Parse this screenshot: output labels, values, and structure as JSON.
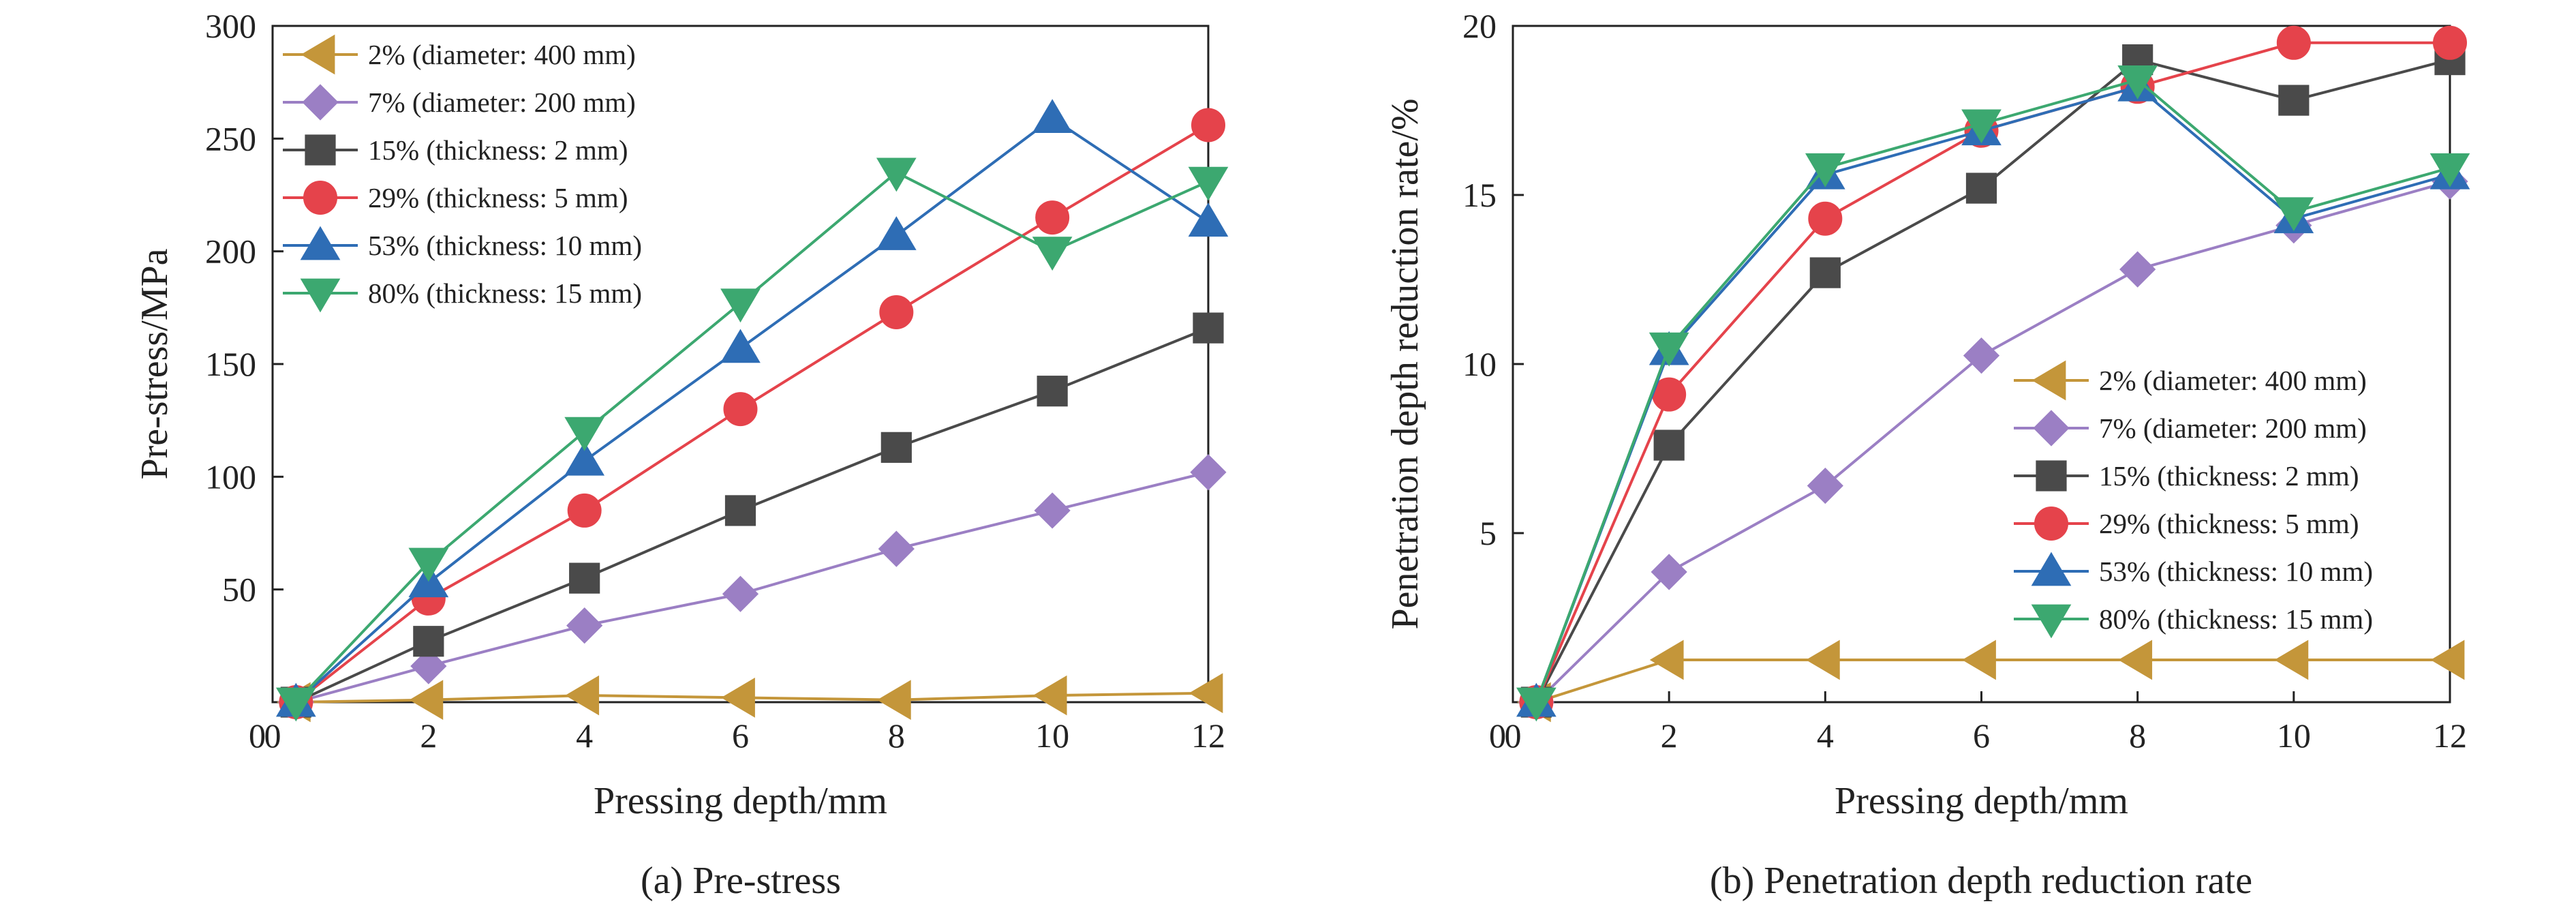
{
  "chart_data": [
    {
      "type": "line",
      "caption": "(a) Pre-stress",
      "xlabel": "Pressing depth/mm",
      "ylabel": "Pre-stress/MPa",
      "xlim": [
        0,
        12
      ],
      "ylim": [
        0,
        300
      ],
      "xticks": [
        0,
        2,
        4,
        6,
        8,
        10,
        12
      ],
      "yticks": [
        50,
        100,
        150,
        200,
        250,
        300
      ],
      "y_origin_label": "0",
      "legend_position": "top-left",
      "x": [
        0.3,
        2,
        4,
        6,
        8,
        10,
        12
      ],
      "series": [
        {
          "name": "2% (diameter: 400 mm)",
          "color": "#C4963A",
          "marker": "triangle-left",
          "values": [
            0,
            1,
            3,
            2,
            1,
            3,
            4
          ]
        },
        {
          "name": "7% (diameter: 200 mm)",
          "color": "#9B7FC4",
          "marker": "diamond",
          "values": [
            0,
            16,
            34,
            48,
            68,
            85,
            102
          ]
        },
        {
          "name": "15% (thickness: 2 mm)",
          "color": "#4A4A4A",
          "marker": "square",
          "values": [
            0,
            27,
            55,
            85,
            113,
            138,
            166
          ]
        },
        {
          "name": "29% (thickness: 5 mm)",
          "color": "#E5434B",
          "marker": "circle",
          "values": [
            0,
            46,
            85,
            130,
            173,
            215,
            256
          ]
        },
        {
          "name": "53% (thickness: 10 mm)",
          "color": "#2E6DB5",
          "marker": "triangle-up",
          "values": [
            0,
            53,
            107,
            157,
            207,
            259,
            213
          ]
        },
        {
          "name": "80% (thickness: 15 mm)",
          "color": "#3CA870",
          "marker": "triangle-down",
          "values": [
            0,
            62,
            120,
            177,
            235,
            200,
            231
          ]
        }
      ]
    },
    {
      "type": "line",
      "caption": "(b) Penetration depth reduction rate",
      "xlabel": "Pressing depth/mm",
      "ylabel": "Penetration depth reduction rate/%",
      "xlim": [
        0,
        12
      ],
      "ylim": [
        0,
        20
      ],
      "xticks": [
        0,
        2,
        4,
        6,
        8,
        10,
        12
      ],
      "yticks": [
        5,
        10,
        15,
        20
      ],
      "y_origin_label": "0",
      "legend_position": "center-right",
      "x": [
        0.3,
        2,
        4,
        6,
        8,
        10,
        12
      ],
      "series": [
        {
          "name": "2% (diameter: 400 mm)",
          "color": "#C4963A",
          "marker": "triangle-left",
          "values": [
            0,
            1.25,
            1.25,
            1.25,
            1.25,
            1.25,
            1.25
          ]
        },
        {
          "name": "7% (diameter: 200 mm)",
          "color": "#9B7FC4",
          "marker": "diamond",
          "values": [
            0,
            3.85,
            6.4,
            10.25,
            12.8,
            14.1,
            15.4
          ]
        },
        {
          "name": "15% (thickness: 2 mm)",
          "color": "#4A4A4A",
          "marker": "square",
          "values": [
            0,
            7.6,
            12.7,
            15.2,
            19.0,
            17.8,
            19.0
          ]
        },
        {
          "name": "29% (thickness: 5 mm)",
          "color": "#E5434B",
          "marker": "circle",
          "values": [
            0,
            9.1,
            14.3,
            16.9,
            18.2,
            19.5,
            19.5
          ]
        },
        {
          "name": "53% (thickness: 10 mm)",
          "color": "#2E6DB5",
          "marker": "triangle-up",
          "values": [
            0,
            10.4,
            15.6,
            16.9,
            18.2,
            14.3,
            15.6
          ]
        },
        {
          "name": "80% (thickness: 15 mm)",
          "color": "#3CA870",
          "marker": "triangle-down",
          "values": [
            0,
            10.5,
            15.8,
            17.1,
            18.4,
            14.5,
            15.8
          ]
        }
      ]
    }
  ]
}
